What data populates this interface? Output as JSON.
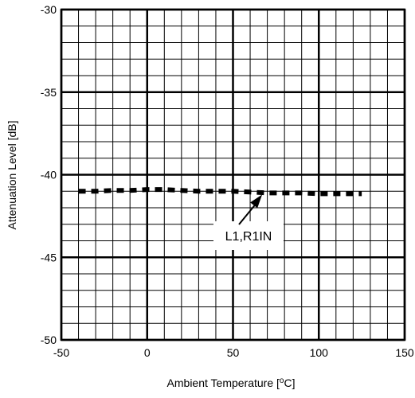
{
  "chart_data": {
    "type": "line",
    "xlabel": "Ambient Temperature [",
    "xlabel_unit": "℃",
    "xlabel_suffix": "]",
    "ylabel": "Attenuation Level [dB]",
    "xlim": [
      -50,
      150
    ],
    "ylim": [
      -50,
      -30
    ],
    "x_ticks": [
      -50,
      0,
      50,
      100,
      150
    ],
    "x_tick_labels": [
      "-50",
      "0",
      "50",
      "100",
      "150"
    ],
    "y_ticks": [
      -30,
      -35,
      -40,
      -45,
      -50
    ],
    "y_tick_labels": [
      "-30",
      "-35",
      "-40",
      "-45",
      "-50"
    ],
    "grid": true,
    "minor_x_step": 10,
    "minor_y_step": 1,
    "series": [
      {
        "name": "L1,R1IN",
        "line_style": "dashed",
        "color": "#000000",
        "x": [
          -40,
          -30,
          -20,
          -10,
          0,
          10,
          20,
          30,
          40,
          50,
          60,
          70,
          80,
          90,
          100,
          110,
          120,
          125
        ],
        "y": [
          -41.0,
          -41.0,
          -40.95,
          -40.95,
          -40.9,
          -40.9,
          -40.95,
          -41.0,
          -41.0,
          -41.0,
          -41.05,
          -41.1,
          -41.1,
          -41.1,
          -41.15,
          -41.15,
          -41.15,
          -41.15
        ]
      }
    ],
    "annotations": [
      {
        "text": "L1,R1IN",
        "points_to": {
          "x": 67,
          "y": -41.1
        }
      }
    ]
  }
}
